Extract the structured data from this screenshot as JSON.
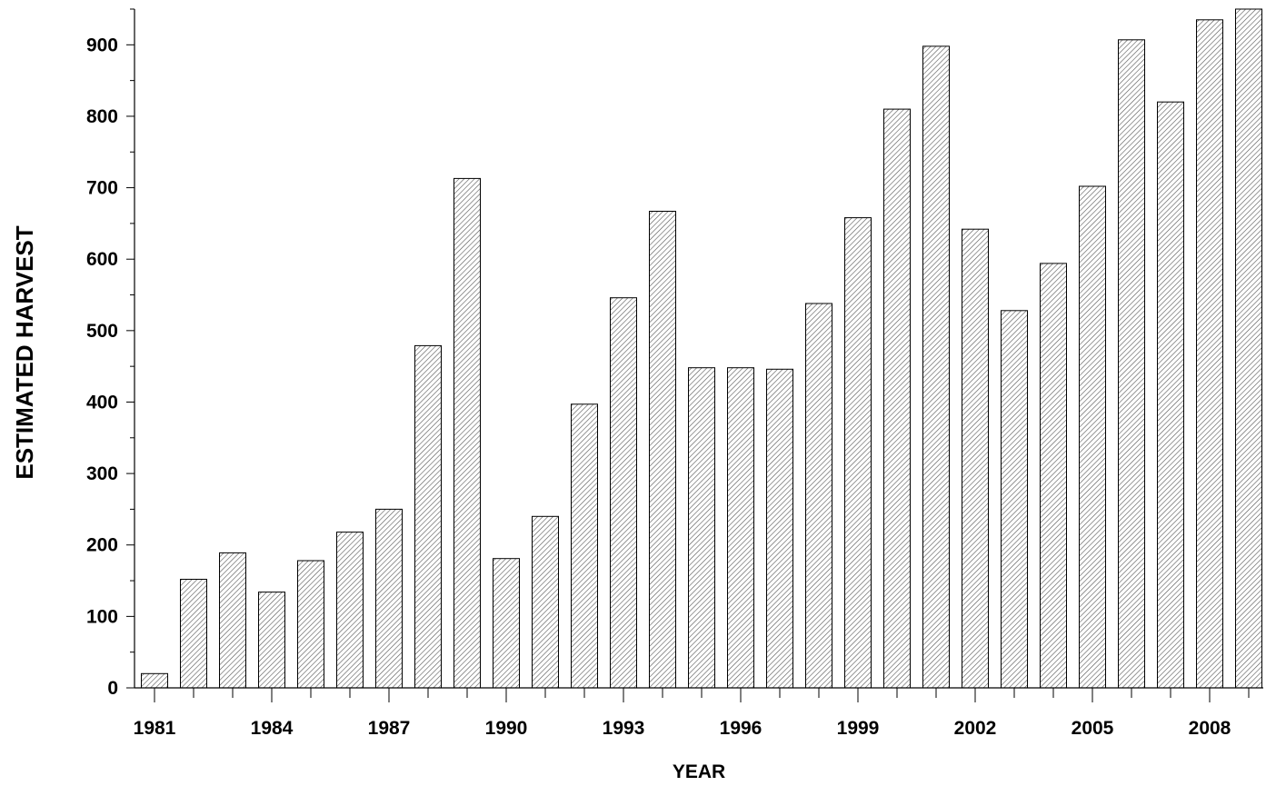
{
  "chart_data": {
    "type": "bar",
    "title": "",
    "xlabel": "YEAR",
    "ylabel": "ESTIMATED HARVEST",
    "ylim": [
      0,
      950
    ],
    "y_ticks": [
      "0",
      "100",
      "200",
      "300",
      "400",
      "500",
      "600",
      "700",
      "800",
      "900"
    ],
    "x_tick_labels": [
      "1981",
      "1984",
      "1987",
      "1990",
      "1993",
      "1996",
      "1999",
      "2002",
      "2005",
      "2008"
    ],
    "categories": [
      "1981",
      "1982",
      "1983",
      "1984",
      "1985",
      "1986",
      "1987",
      "1988",
      "1989",
      "1990",
      "1991",
      "1992",
      "1993",
      "1994",
      "1995",
      "1996",
      "1997",
      "1998",
      "1999",
      "2000",
      "2001",
      "2002",
      "2003",
      "2004",
      "2005",
      "2006",
      "2007",
      "2008",
      "2009"
    ],
    "values": [
      20,
      152,
      189,
      134,
      178,
      218,
      250,
      479,
      713,
      181,
      240,
      397,
      546,
      667,
      448,
      448,
      446,
      538,
      658,
      810,
      898,
      642,
      528,
      594,
      702,
      907,
      820,
      935,
      950
    ],
    "grid": false,
    "bar_fill": "diagonal-hatch",
    "colors": {
      "bar_stroke": "#000000",
      "hatch": "#555555",
      "background": "#ffffff"
    }
  }
}
